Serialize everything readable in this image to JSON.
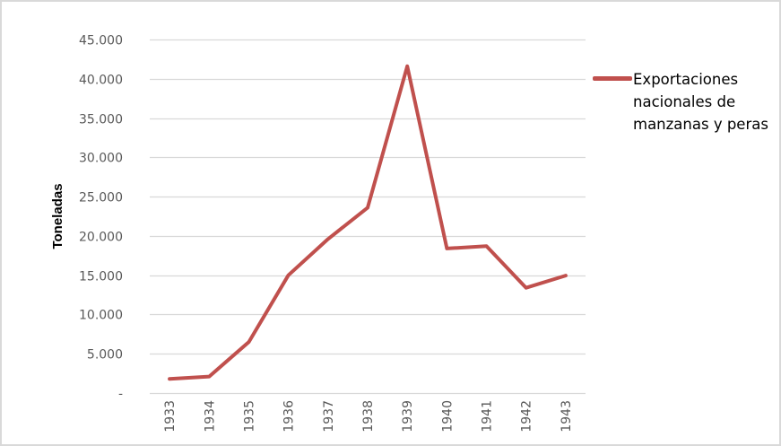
{
  "chart_data": {
    "type": "line",
    "title": "",
    "xlabel": "",
    "ylabel": "Toneladas",
    "categories": [
      "1933",
      "1934",
      "1935",
      "1936",
      "1937",
      "1938",
      "1939",
      "1940",
      "1941",
      "1942",
      "1943"
    ],
    "series": [
      {
        "name": "Exportaciones nacionales de manzanas y peras",
        "color": "#C0504D",
        "values": [
          1800,
          2100,
          6500,
          15000,
          19600,
          23600,
          41600,
          18400,
          18700,
          13400,
          14950
        ]
      }
    ],
    "yticks": [
      0,
      5000,
      10000,
      15000,
      20000,
      25000,
      30000,
      35000,
      40000,
      45000
    ],
    "ytick_labels": [
      "-",
      "5.000",
      "10.000",
      "15.000",
      "20.000",
      "25.000",
      "30.000",
      "35.000",
      "40.000",
      "45.000"
    ],
    "ylim": [
      0,
      45000
    ],
    "grid": true,
    "legend_position": "right"
  },
  "legend": {
    "lines": [
      "Exportaciones",
      "nacionales de",
      "manzanas y peras"
    ]
  },
  "colors": {
    "series": "#C0504D",
    "grid": "#d9d9d9",
    "tick_text": "#595959",
    "border": "#d9d9d9"
  }
}
